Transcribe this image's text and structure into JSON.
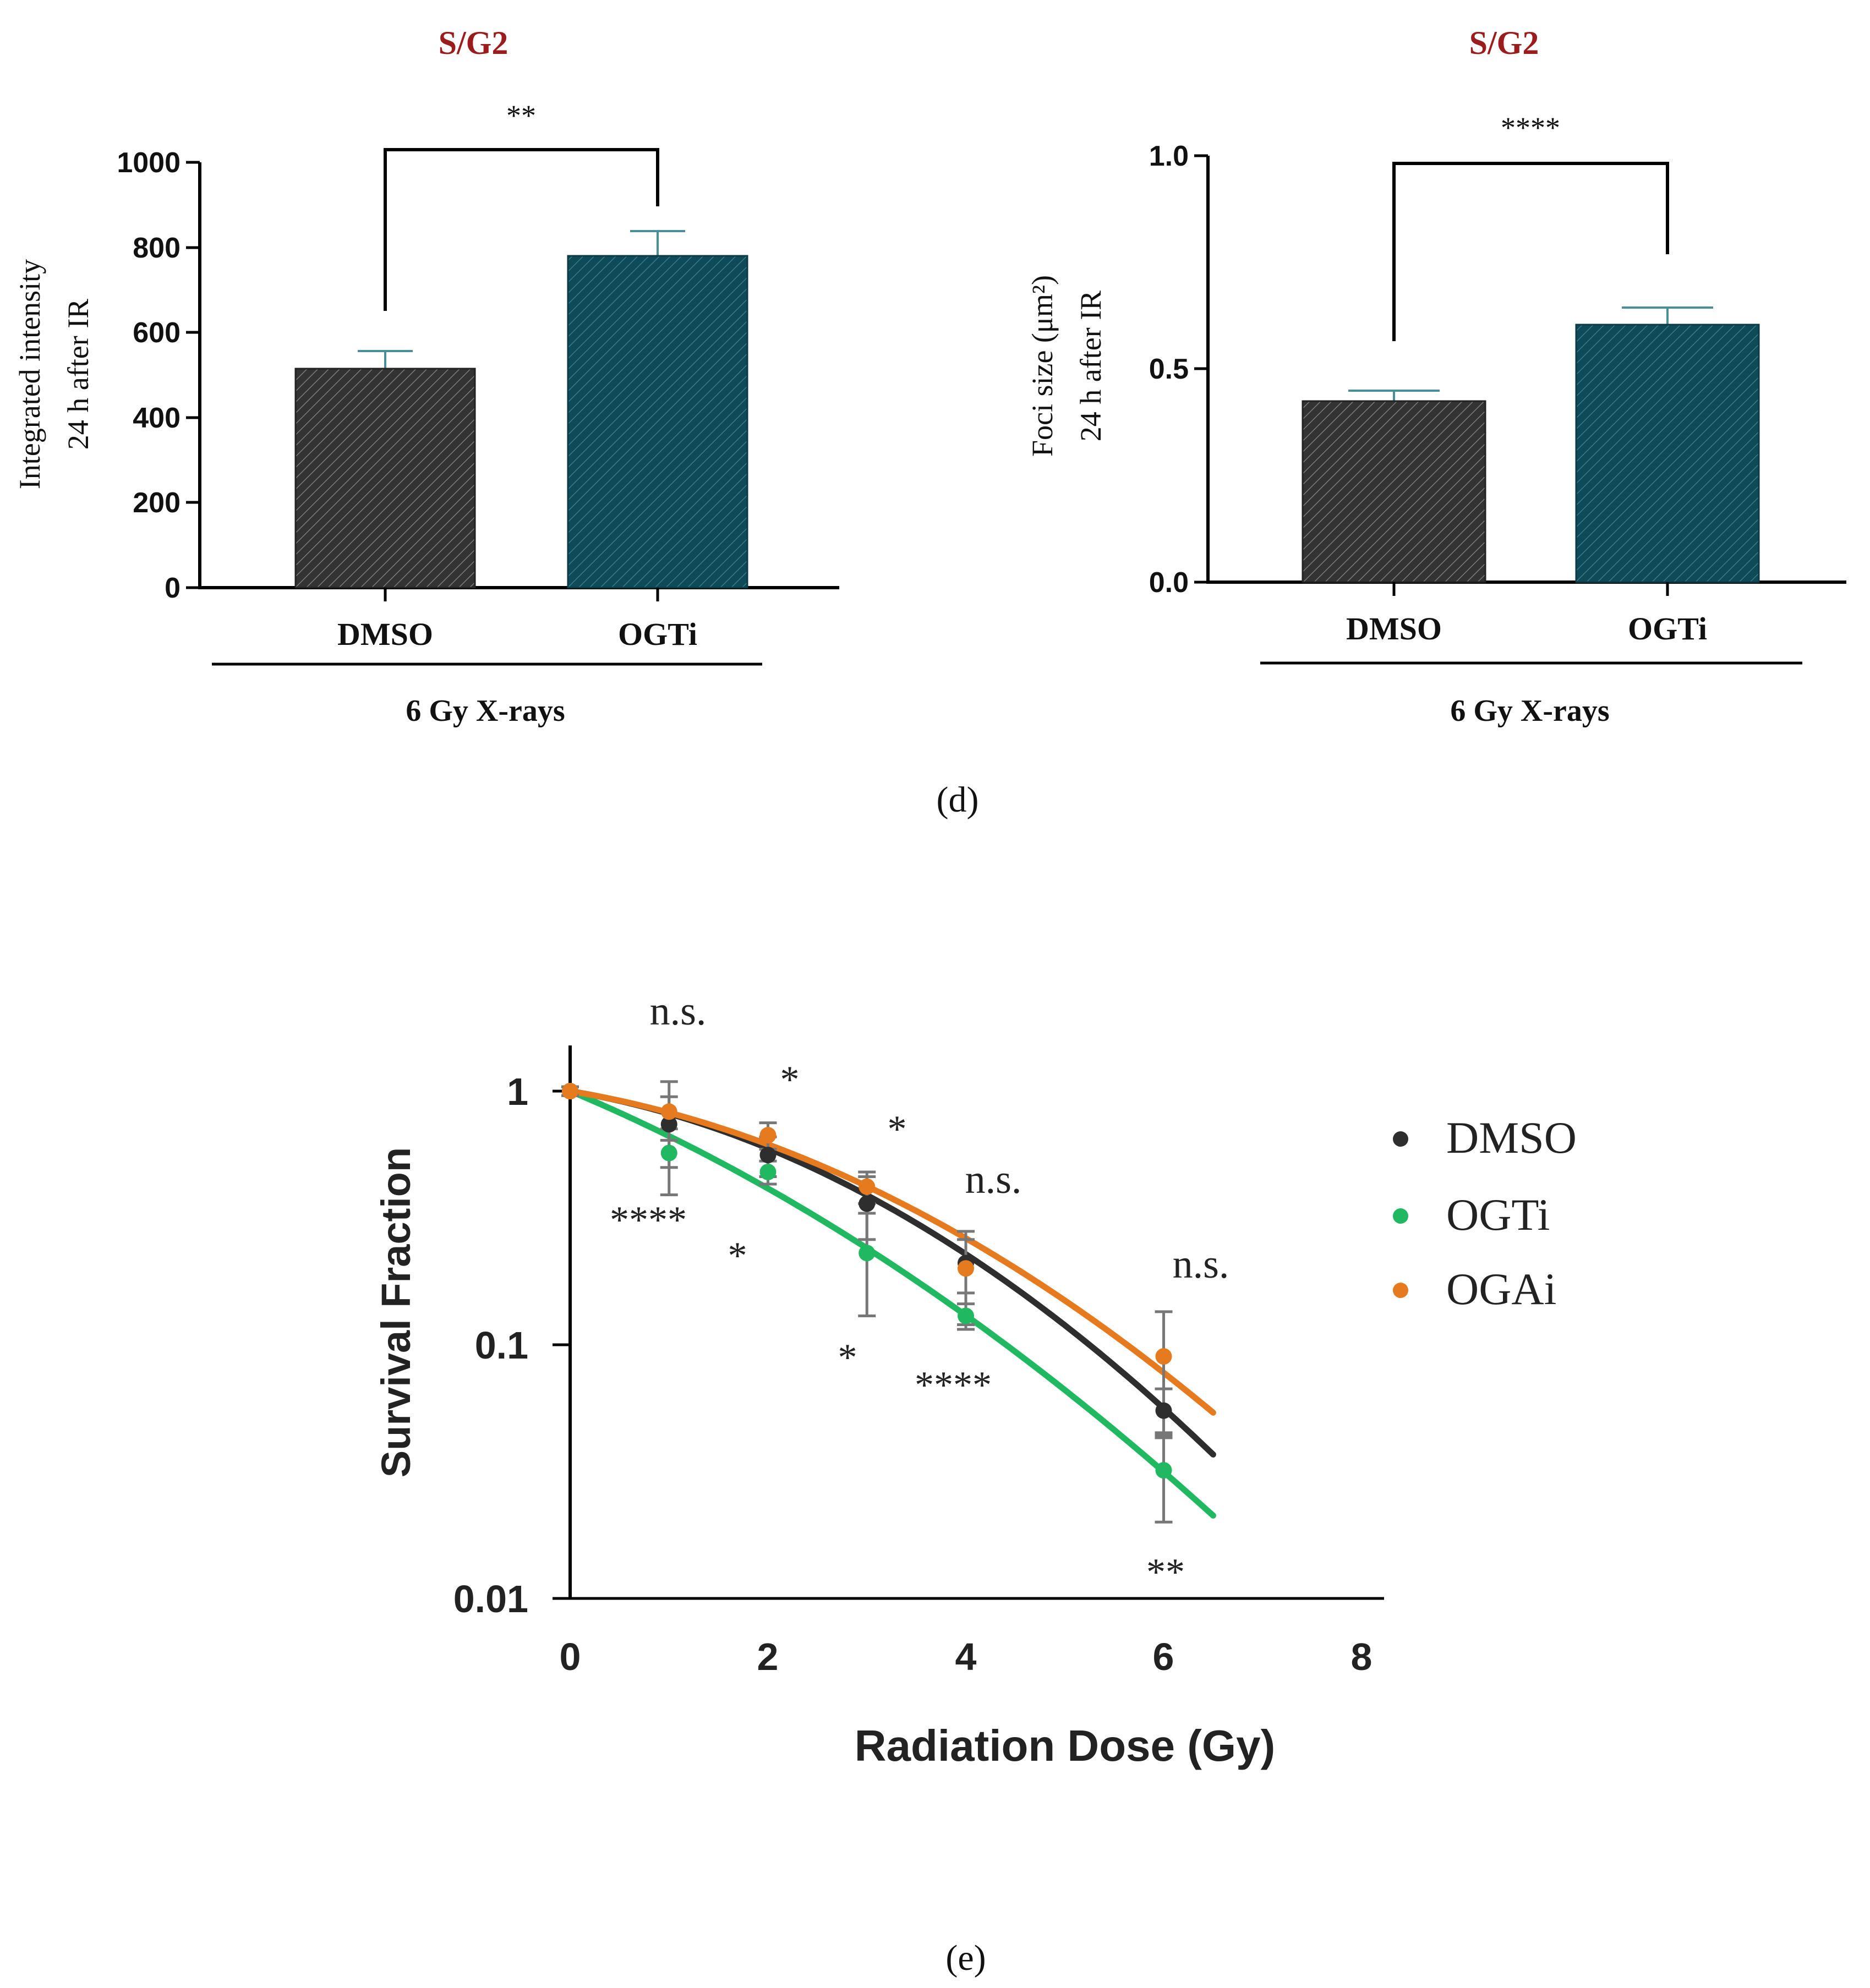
{
  "colors": {
    "dmso_bar": "#3a3a3a",
    "ogti_bar": "#124f5e",
    "title_red": "#9b1c1c",
    "err_teal": "#4a8f96",
    "dmso_line": "#2e2e2e",
    "ogti_line": "#21b862",
    "ogai_line": "#e57a1e",
    "err_grey": "#777777"
  },
  "panel_labels": {
    "d": "(d)",
    "e": "(e)"
  },
  "chart_data": [
    {
      "id": "d-left",
      "type": "bar",
      "title": "S/G2",
      "ylabel_line1": "Integrated intensity",
      "ylabel_line2": "24 h after IR",
      "categories": [
        "DMSO",
        "OGTi"
      ],
      "values": [
        515,
        780
      ],
      "errors": [
        42,
        60
      ],
      "ylim": [
        0,
        1000
      ],
      "yticks": [
        0,
        200,
        400,
        600,
        800,
        1000
      ],
      "ytick_labels": [
        "0",
        "200",
        "400",
        "600",
        "800",
        "1000"
      ],
      "significance": "**",
      "group_label": "6 Gy X-rays"
    },
    {
      "id": "d-right",
      "type": "bar",
      "title": "S/G2",
      "ylabel_line1": "Foci size (μm²)",
      "ylabel_line2": "24 h after IR",
      "categories": [
        "DMSO",
        "OGTi"
      ],
      "values": [
        0.425,
        0.605
      ],
      "errors": [
        0.025,
        0.04
      ],
      "ylim": [
        0,
        1.0
      ],
      "yticks": [
        0,
        0.5,
        1.0
      ],
      "ytick_labels": [
        "0.0",
        "0.5",
        "1.0"
      ],
      "significance": "****",
      "group_label": "6 Gy X-rays"
    },
    {
      "id": "e",
      "type": "scatter",
      "xlabel": "Radiation Dose (Gy)",
      "ylabel": "Survival Fraction",
      "yscale": "log",
      "xlim": [
        0,
        8
      ],
      "ylim": [
        0.01,
        1.5
      ],
      "xticks": [
        0,
        2,
        4,
        6,
        8
      ],
      "xtick_labels": [
        "0",
        "2",
        "4",
        "6",
        "8"
      ],
      "yticks": [
        0.01,
        0.1,
        1
      ],
      "ytick_labels": [
        "0.01",
        "0.1",
        "1"
      ],
      "series": [
        {
          "name": "DMSO",
          "x": [
            0,
            1,
            2,
            3,
            4,
            6
          ],
          "y": [
            1.0,
            0.74,
            0.56,
            0.36,
            0.21,
            0.055
          ],
          "err": [
            0.04,
            0.35,
            0.1,
            0.1,
            0.05,
            0.012
          ],
          "fit": {
            "alpha": 0.15,
            "beta": 0.055,
            "xmax": 6.5
          }
        },
        {
          "name": "OGTi",
          "x": [
            0,
            1,
            2,
            3,
            4,
            6
          ],
          "y": [
            1.0,
            0.57,
            0.48,
            0.23,
            0.13,
            0.032
          ],
          "err": [
            0.04,
            0.07,
            0.05,
            0.1,
            0.015,
            0.012
          ],
          "fit": {
            "alpha": 0.375,
            "beta": 0.0335,
            "xmax": 6.5
          }
        },
        {
          "name": "OGAi",
          "x": [
            0,
            1,
            2,
            3,
            4,
            6
          ],
          "y": [
            1.0,
            0.83,
            0.67,
            0.42,
            0.2,
            0.09
          ],
          "err": [
            0.04,
            0.12,
            0.08,
            0.06,
            0.08,
            0.045
          ],
          "fit": {
            "alpha": 0.15,
            "beta": 0.046,
            "xmax": 6.5
          }
        }
      ],
      "annotations": [
        "n.s.",
        "*",
        "*",
        "n.s.",
        "n.s.",
        "****",
        "*",
        "*",
        "****",
        "**"
      ]
    }
  ]
}
